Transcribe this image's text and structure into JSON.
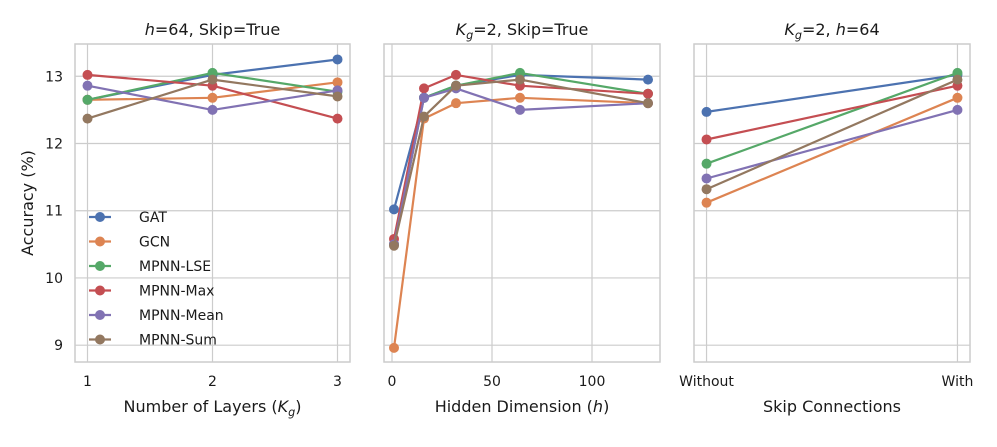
{
  "figure": {
    "ylabel": "Accuracy (%)",
    "yticks": [
      9,
      10,
      11,
      12,
      13
    ]
  },
  "legend": {
    "position": "lower-left of first panel",
    "entries": [
      "GAT",
      "GCN",
      "MPNN-LSE",
      "MPNN-Max",
      "MPNN-Mean",
      "MPNN-Sum"
    ]
  },
  "colors": {
    "GAT": "#4c72b0",
    "GCN": "#dd8452",
    "MPNN-LSE": "#55a868",
    "MPNN-Max": "#c44e52",
    "MPNN-Mean": "#8172b3",
    "MPNN-Sum": "#937860",
    "grid": "#cccccc",
    "spine": "#cccccc"
  },
  "chart_data": [
    {
      "type": "line",
      "title_parts": [
        {
          "t": "h",
          "italic": true
        },
        {
          "t": "=64, Skip=True"
        }
      ],
      "xlabel_parts": [
        {
          "t": "Number of Layers ("
        },
        {
          "t": "K",
          "italic": true
        },
        {
          "t": "g",
          "italic": true,
          "sub": true
        },
        {
          "t": ")"
        }
      ],
      "ylim": [
        8.75,
        13.48
      ],
      "xlim": [
        0.9,
        3.1
      ],
      "xticks": [
        1,
        2,
        3
      ],
      "xticklabels": [
        "1",
        "2",
        "3"
      ],
      "categorical": false,
      "x": [
        1,
        2,
        3
      ],
      "series": [
        {
          "name": "GAT",
          "values": [
            12.65,
            13.02,
            13.25
          ]
        },
        {
          "name": "GCN",
          "values": [
            12.65,
            12.68,
            12.91
          ]
        },
        {
          "name": "MPNN-LSE",
          "values": [
            12.65,
            13.05,
            12.77
          ]
        },
        {
          "name": "MPNN-Max",
          "values": [
            13.02,
            12.86,
            12.37
          ]
        },
        {
          "name": "MPNN-Mean",
          "values": [
            12.86,
            12.5,
            12.79
          ]
        },
        {
          "name": "MPNN-Sum",
          "values": [
            12.37,
            12.95,
            12.7
          ]
        }
      ]
    },
    {
      "type": "line",
      "title_parts": [
        {
          "t": "K",
          "italic": true
        },
        {
          "t": "g",
          "italic": true,
          "sub": true
        },
        {
          "t": "=2, Skip=True"
        }
      ],
      "xlabel_parts": [
        {
          "t": "Hidden Dimension ("
        },
        {
          "t": "h",
          "italic": true
        },
        {
          "t": ")"
        }
      ],
      "ylim": [
        8.75,
        13.48
      ],
      "xlim": [
        -4,
        134
      ],
      "xticks": [
        0,
        50,
        100
      ],
      "xticklabels": [
        "0",
        "50",
        "100"
      ],
      "categorical": false,
      "x": [
        1,
        16,
        32,
        64,
        128
      ],
      "series": [
        {
          "name": "GAT",
          "values": [
            11.02,
            12.68,
            12.86,
            13.02,
            12.95
          ]
        },
        {
          "name": "GCN",
          "values": [
            8.96,
            12.37,
            12.6,
            12.68,
            12.6
          ]
        },
        {
          "name": "MPNN-LSE",
          "values": [
            10.5,
            12.68,
            12.86,
            13.05,
            12.74
          ]
        },
        {
          "name": "MPNN-Max",
          "values": [
            10.58,
            12.82,
            13.02,
            12.86,
            12.74
          ]
        },
        {
          "name": "MPNN-Mean",
          "values": [
            10.5,
            12.68,
            12.82,
            12.5,
            12.6
          ]
        },
        {
          "name": "MPNN-Sum",
          "values": [
            10.48,
            12.4,
            12.86,
            12.95,
            12.6
          ]
        }
      ]
    },
    {
      "type": "line",
      "title_parts": [
        {
          "t": "K",
          "italic": true
        },
        {
          "t": "g",
          "italic": true,
          "sub": true
        },
        {
          "t": "=2, "
        },
        {
          "t": "h",
          "italic": true
        },
        {
          "t": "=64"
        }
      ],
      "xlabel_parts": [
        {
          "t": "Skip Connections"
        }
      ],
      "ylim": [
        8.75,
        13.48
      ],
      "xlim": [
        -0.05,
        1.05
      ],
      "xticks": [
        0,
        1
      ],
      "xticklabels": [
        "Without",
        "With"
      ],
      "categorical": true,
      "x": [
        0,
        1
      ],
      "series": [
        {
          "name": "GAT",
          "values": [
            12.47,
            13.02
          ]
        },
        {
          "name": "GCN",
          "values": [
            11.12,
            12.68
          ]
        },
        {
          "name": "MPNN-LSE",
          "values": [
            11.7,
            13.05
          ]
        },
        {
          "name": "MPNN-Max",
          "values": [
            12.06,
            12.86
          ]
        },
        {
          "name": "MPNN-Mean",
          "values": [
            11.48,
            12.5
          ]
        },
        {
          "name": "MPNN-Sum",
          "values": [
            11.32,
            12.95
          ]
        }
      ]
    }
  ]
}
